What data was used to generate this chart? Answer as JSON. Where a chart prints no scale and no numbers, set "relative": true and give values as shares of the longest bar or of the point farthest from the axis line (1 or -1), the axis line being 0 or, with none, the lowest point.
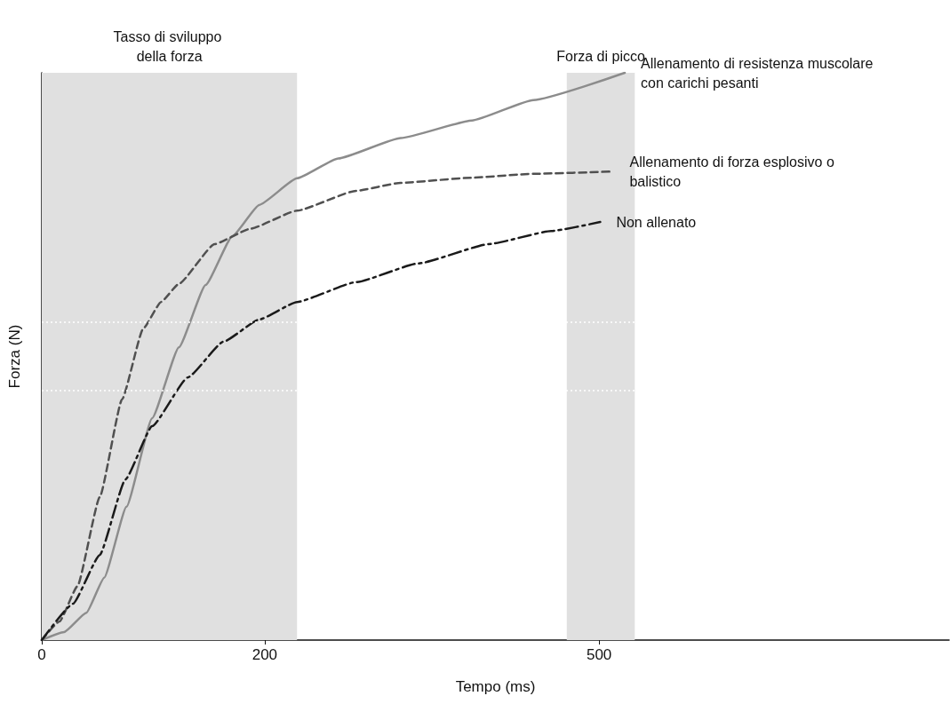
{
  "chart_data": {
    "type": "line",
    "xlabel": "Tempo (ms)",
    "ylabel": "Forza (N)",
    "relative": true,
    "xlim": [
      0,
      814
    ],
    "xticks": [
      0,
      200,
      500
    ],
    "grid": false,
    "legend": false,
    "marker": "none",
    "series": [
      {
        "name": "Allenamento di resistenza muscolare con carichi pesanti",
        "color": "#8c8c8c",
        "line_style": "solid",
        "x": [
          0,
          20,
          40,
          56,
          76,
          99,
          123,
          147,
          171,
          195,
          229,
          266,
          322,
          386,
          441,
          523
        ],
        "values": [
          0,
          0.014,
          0.048,
          0.11,
          0.235,
          0.391,
          0.516,
          0.626,
          0.712,
          0.767,
          0.814,
          0.849,
          0.885,
          0.916,
          0.952,
          1
        ]
      },
      {
        "name": "Allenamento di forza esplosivo o balistico",
        "color": "#505050",
        "line_style": "dashed",
        "x": [
          0,
          16,
          32,
          52,
          72,
          91,
          107,
          123,
          155,
          187,
          229,
          282,
          322,
          385,
          441,
          513
        ],
        "values": [
          0,
          0.033,
          0.095,
          0.252,
          0.424,
          0.549,
          0.596,
          0.628,
          0.698,
          0.725,
          0.757,
          0.792,
          0.806,
          0.815,
          0.822,
          0.826
        ]
      },
      {
        "name": "Non allenato",
        "color": "#1a1a1a",
        "line_style": "dashdot",
        "x": [
          0,
          28,
          52,
          75,
          99,
          131,
          163,
          195,
          229,
          282,
          338,
          401,
          457,
          501
        ],
        "values": [
          0,
          0.064,
          0.15,
          0.283,
          0.377,
          0.463,
          0.526,
          0.565,
          0.596,
          0.631,
          0.664,
          0.698,
          0.721,
          0.737
        ]
      }
    ],
    "bands": [
      {
        "axis": "x",
        "from": 0,
        "to": 229,
        "label": "Tasso di sviluppo della forza",
        "color": "#e0e0e0"
      },
      {
        "axis": "x",
        "from": 471,
        "to": 532,
        "label": "Forza di picco",
        "color": "#e0e0e0"
      }
    ],
    "ref_lines": [
      {
        "axis": "y",
        "value": 0.562,
        "color": "#ffffff",
        "line_style": "dotted"
      },
      {
        "axis": "y",
        "value": 0.443,
        "color": "#ffffff",
        "line_style": "dotted"
      }
    ]
  }
}
